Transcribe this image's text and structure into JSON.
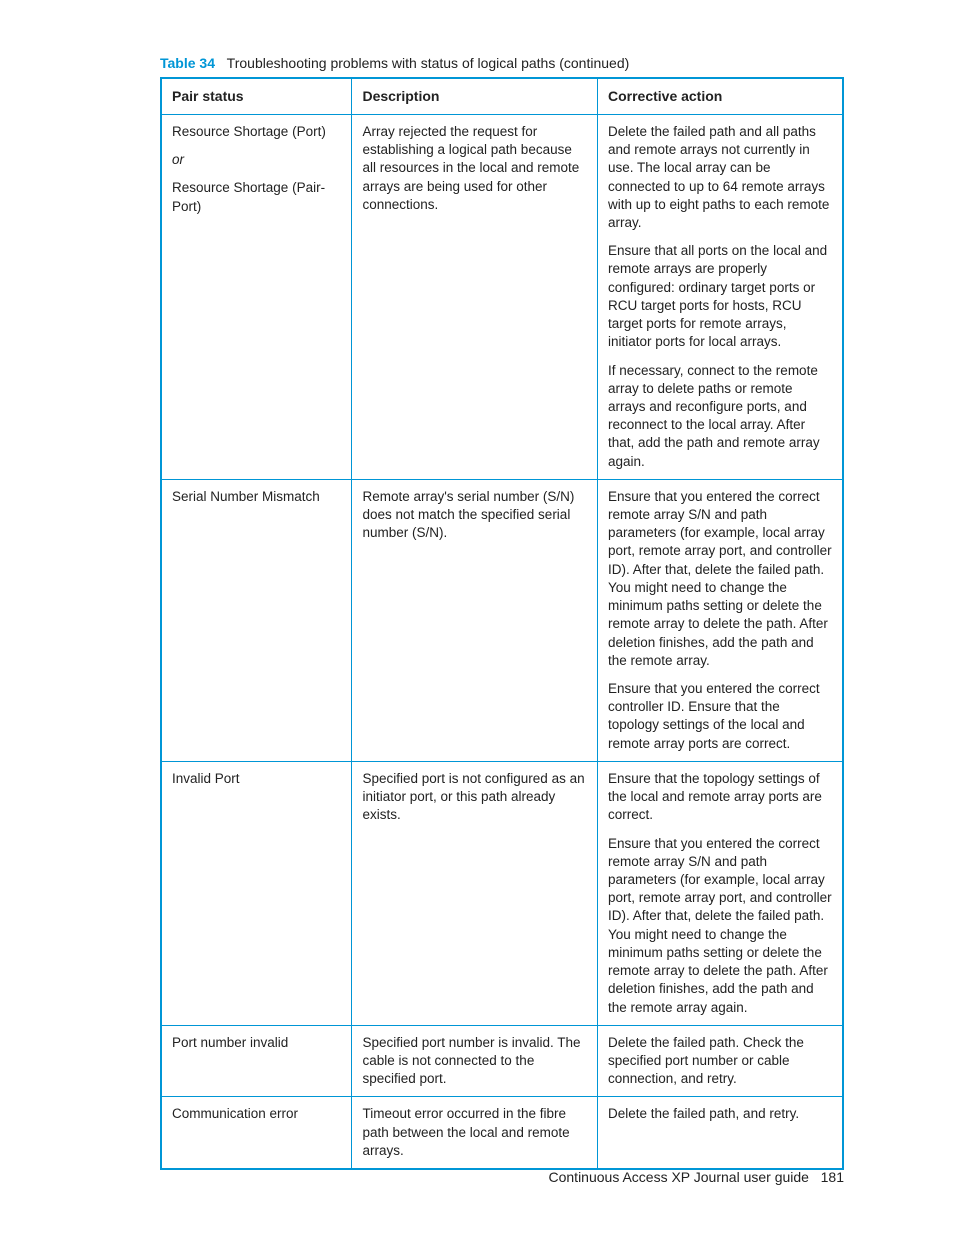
{
  "caption": {
    "label": "Table 34",
    "text": "Troubleshooting problems with status of logical paths (continued)"
  },
  "columns": [
    "Pair status",
    "Description",
    "Corrective action"
  ],
  "rows": [
    {
      "status_parts": [
        "Resource Shortage (Port)",
        "or",
        "Resource Shortage (Pair-Port)"
      ],
      "description": "Array rejected the request for establishing a logical path because all resources in the local and remote arrays are being used for other connections.",
      "actions": [
        "Delete the failed path and all paths and remote arrays not currently in use. The local array can be connected to up to 64 remote arrays with up to eight paths to each remote array.",
        "Ensure that all ports on the local and remote arrays are properly configured: ordinary target ports or RCU target ports for hosts, RCU target ports for remote arrays, initiator ports for local arrays.",
        "If necessary, connect to the remote array to delete paths or remote arrays and reconfigure ports, and reconnect to the local array. After that, add the path and remote array again."
      ]
    },
    {
      "status": "Serial Number Mismatch",
      "description": "Remote array's serial number (S/N) does not match the specified serial number (S/N).",
      "actions": [
        "Ensure that you entered the correct remote array S/N and path parameters (for example, local array port, remote array port, and controller ID). After that, delete the failed path. You might need to change the minimum paths setting or delete the remote array to delete the path. After deletion finishes, add the path and the remote array.",
        "Ensure that you entered the correct controller ID. Ensure that the topology settings of the local and remote array ports are correct."
      ]
    },
    {
      "status": "Invalid Port",
      "description": "Specified port is not configured as an initiator port, or this path already exists.",
      "actions": [
        "Ensure that the topology settings of the local and remote array ports are correct.",
        "Ensure that you entered the correct remote array S/N and path parameters (for example, local array port, remote array port, and controller ID). After that, delete the failed path. You might need to change the minimum paths setting or delete the remote array to delete the path. After deletion finishes, add the path and the remote array again."
      ]
    },
    {
      "status": "Port number invalid",
      "description": "Specified port number is invalid. The cable is not connected to the specified port.",
      "actions": [
        "Delete the failed path. Check the specified port number or cable connection, and retry."
      ]
    },
    {
      "status": "Communication error",
      "description": "Timeout error occurred in the fibre path between the local and remote arrays.",
      "actions": [
        "Delete the failed path, and retry."
      ]
    }
  ],
  "footer": {
    "title": "Continuous Access XP Journal user guide",
    "page": "181"
  },
  "colors": {
    "accent": "#0096d6",
    "text": "#222222",
    "background": "#ffffff"
  }
}
